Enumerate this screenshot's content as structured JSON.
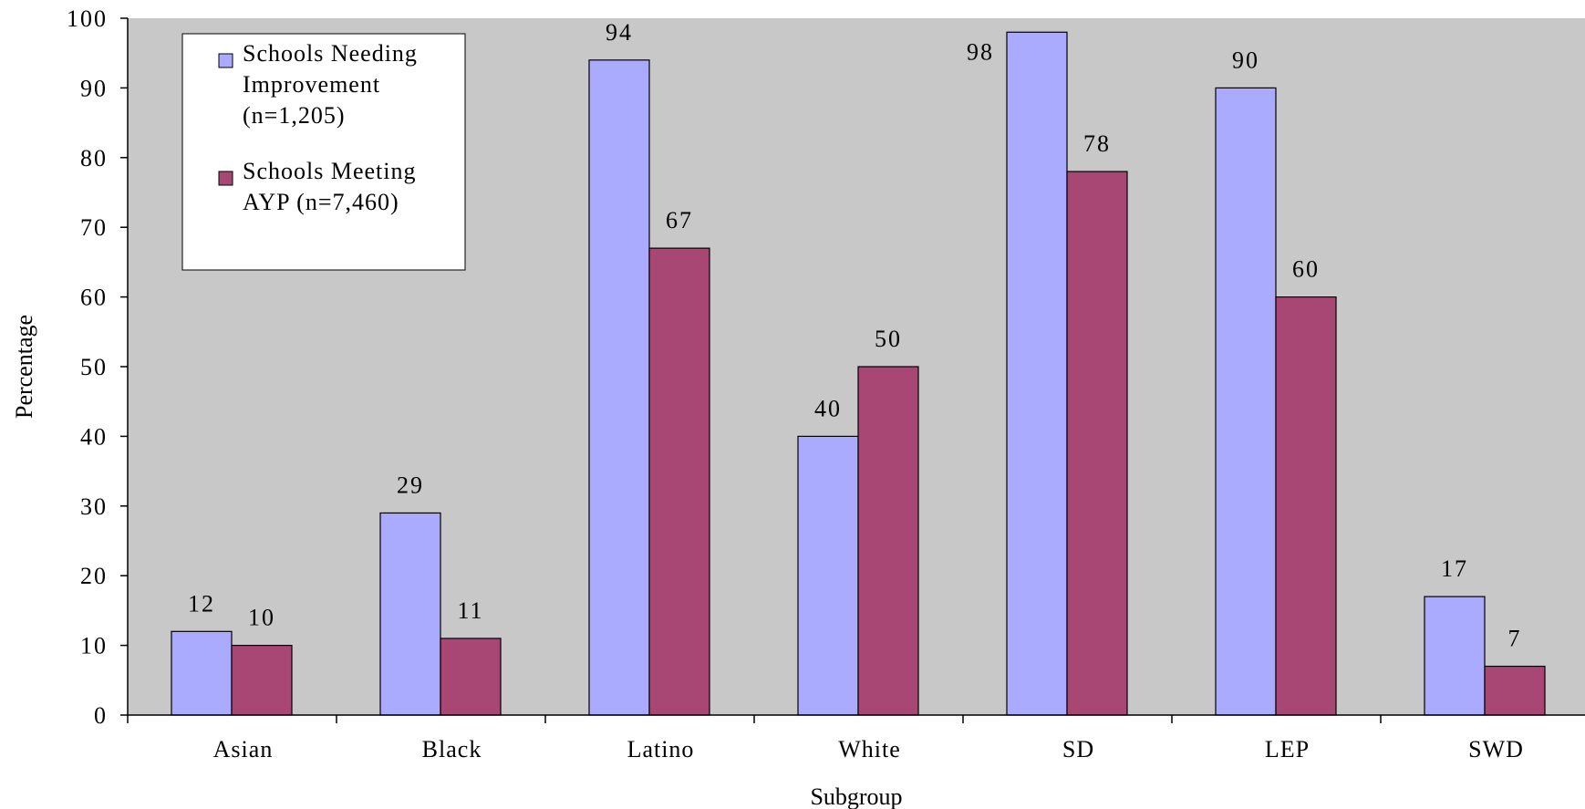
{
  "chart_data": {
    "type": "bar",
    "categories": [
      "Asian",
      "Black",
      "Latino",
      "White",
      "SD",
      "LEP",
      "SWD"
    ],
    "series": [
      {
        "name_lines": [
          "Schools Needing",
          "Improvement",
          "(n=1,205)"
        ],
        "values": [
          12,
          29,
          94,
          40,
          98,
          90,
          17
        ],
        "color": "#aaaaff"
      },
      {
        "name_lines": [
          "Schools Meeting",
          "AYP  (n=7,460)"
        ],
        "values": [
          10,
          11,
          67,
          50,
          78,
          60,
          7
        ],
        "color": "#a94774"
      }
    ],
    "xlabel": "Subgroup",
    "ylabel": "Percentage",
    "ylim": [
      0,
      100
    ],
    "yticks": [
      0,
      10,
      20,
      30,
      40,
      50,
      60,
      70,
      80,
      90,
      100
    ],
    "plot_background": "#c8c8c8",
    "legend_position": "top-left",
    "grid": false
  }
}
